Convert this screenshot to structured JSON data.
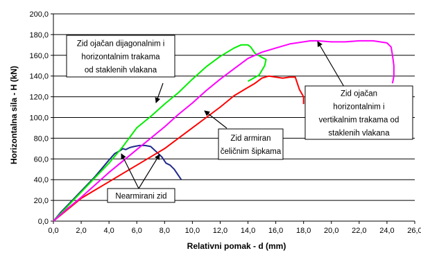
{
  "chart_data": {
    "type": "line",
    "xlabel": "Relativni pomak - d (mm)",
    "ylabel": "Horizontalna sila - H (kN)",
    "xlim": [
      0,
      26
    ],
    "ylim": [
      0,
      200
    ],
    "x_ticks": [
      "0,0",
      "2,0",
      "4,0",
      "6,0",
      "8,0",
      "10,0",
      "12,0",
      "14,0",
      "16,0",
      "18,0",
      "20,0",
      "22,0",
      "24,0",
      "26,0"
    ],
    "y_ticks": [
      "0,0",
      "20,0",
      "40,0",
      "60,0",
      "80,0",
      "100,0",
      "120,0",
      "140,0",
      "160,0",
      "180,0",
      "200,0"
    ],
    "grid": "horizontal",
    "legend": "none",
    "series": [
      {
        "color": "#1f2a8a",
        "x": [
          0,
          0.5,
          1.0,
          1.5,
          2.0,
          2.5,
          3.0,
          3.5,
          4.0,
          4.4,
          4.8,
          5.0,
          5.2,
          5.5,
          5.8,
          6.2,
          6.6,
          7.0,
          7.4,
          7.8,
          8.1,
          8.4,
          8.7,
          9.0,
          9.2
        ],
        "y": [
          0,
          8,
          15,
          22,
          29,
          36,
          43,
          51,
          59,
          65,
          68,
          70,
          69,
          71,
          72,
          73,
          73,
          72,
          67,
          62,
          56,
          54,
          50,
          44,
          40
        ]
      },
      {
        "color": "#ff0000",
        "x": [
          0,
          1.0,
          2.0,
          3.0,
          4.0,
          5.0,
          6.0,
          7.0,
          8.0,
          9.0,
          10.0,
          11.0,
          12.0,
          13.0,
          14.0,
          14.5,
          15.0,
          15.5,
          16.0,
          16.5,
          17.0,
          17.4,
          17.7,
          18.0,
          18.0
        ],
        "y": [
          0,
          11,
          22,
          30,
          38,
          46,
          54,
          62,
          70,
          80,
          90,
          100,
          110,
          121,
          129,
          133,
          138,
          140,
          139,
          138,
          139,
          139,
          127,
          120,
          113
        ]
      },
      {
        "color": "#00ee00",
        "x": [
          0,
          1.0,
          2.0,
          3.0,
          4.0,
          5.0,
          6.0,
          7.0,
          8.0,
          9.0,
          10.0,
          11.0,
          12.0,
          13.0,
          13.5,
          14.0,
          14.2,
          14.5,
          15.0,
          15.3,
          15.2,
          14.8,
          14.0
        ],
        "y": [
          0,
          14,
          28,
          42,
          56,
          72,
          90,
          101,
          113,
          124,
          137,
          149,
          159,
          167,
          170,
          170,
          168,
          162,
          158,
          156,
          150,
          141,
          135
        ]
      },
      {
        "color": "#ff00ff",
        "x": [
          0,
          1.0,
          2.0,
          3.0,
          4.0,
          5.0,
          6.0,
          7.0,
          8.0,
          9.0,
          10.0,
          11.0,
          12.0,
          13.0,
          14.0,
          15.0,
          16.0,
          17.0,
          18.0,
          18.5,
          19.0,
          20.0,
          21.0,
          22.0,
          23.0,
          23.5,
          24.0,
          24.3,
          24.4,
          24.5,
          24.5,
          24.4
        ],
        "y": [
          0,
          12,
          23,
          35,
          47,
          58,
          69,
          80,
          91,
          103,
          114,
          126,
          137,
          147,
          157,
          163,
          167,
          171,
          173,
          174,
          174,
          173,
          173,
          174,
          174,
          173,
          172,
          168,
          160,
          150,
          140,
          133
        ]
      }
    ],
    "annotations": [
      {
        "text": [
          "Zid ojačan dijagonalnim i",
          "horizontalnim trakama",
          "od staklenih vlakana"
        ]
      },
      {
        "text": [
          "Zid ojačan",
          "horizontalnim i",
          "vertikalnim trakama od",
          "staklenih vlakana"
        ]
      },
      {
        "text": [
          "Zid armiran",
          "čeličnim šipkama"
        ]
      },
      {
        "text": [
          "Nearmirani zid"
        ]
      }
    ]
  }
}
